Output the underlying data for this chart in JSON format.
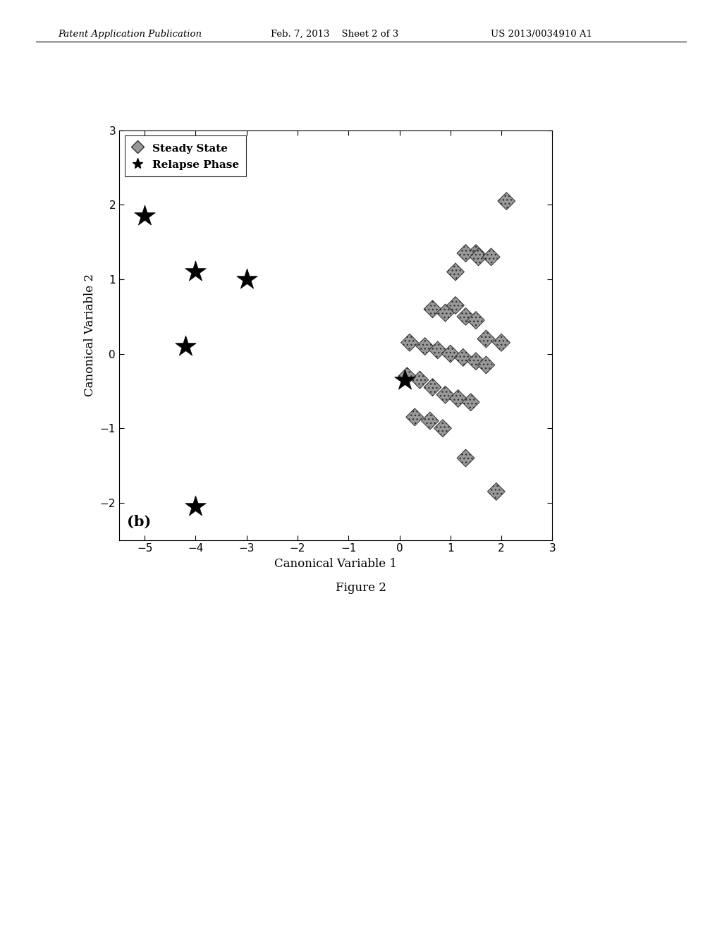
{
  "steady_state_x": [
    2.1,
    1.5,
    1.1,
    1.3,
    1.55,
    1.8,
    0.65,
    0.9,
    1.1,
    1.3,
    1.5,
    1.7,
    2.0,
    0.2,
    0.5,
    0.75,
    1.0,
    1.25,
    1.5,
    1.7,
    0.15,
    0.4,
    0.65,
    0.9,
    1.15,
    1.4,
    0.3,
    0.6,
    0.85,
    1.3,
    1.9
  ],
  "steady_state_y": [
    2.05,
    1.35,
    1.1,
    1.35,
    1.3,
    1.3,
    0.6,
    0.55,
    0.65,
    0.5,
    0.45,
    0.2,
    0.15,
    0.15,
    0.1,
    0.05,
    0.0,
    -0.05,
    -0.1,
    -0.15,
    -0.3,
    -0.35,
    -0.45,
    -0.55,
    -0.6,
    -0.65,
    -0.85,
    -0.9,
    -1.0,
    -1.4,
    -1.85
  ],
  "relapse_x": [
    -5.0,
    -4.0,
    -4.2,
    -3.0,
    0.1,
    -4.0
  ],
  "relapse_y": [
    1.85,
    1.1,
    0.1,
    1.0,
    -0.35,
    -2.05
  ],
  "xlim": [
    -5.5,
    3.0
  ],
  "ylim": [
    -2.5,
    3.0
  ],
  "xticks": [
    -5,
    -4,
    -3,
    -2,
    -1,
    0,
    1,
    2,
    3
  ],
  "yticks": [
    -2,
    -1,
    0,
    1,
    2,
    3
  ],
  "xlabel": "Canonical Variable 1",
  "ylabel": "Canonical Variable 2",
  "legend_label_ss": "Steady State",
  "legend_label_rp": "Relapse Phase",
  "panel_label": "(b)",
  "figure_caption": "Figure 2",
  "header_left": "Patent Application Publication",
  "header_mid": "Feb. 7, 2013    Sheet 2 of 3",
  "header_right": "US 2013/0034910 A1"
}
